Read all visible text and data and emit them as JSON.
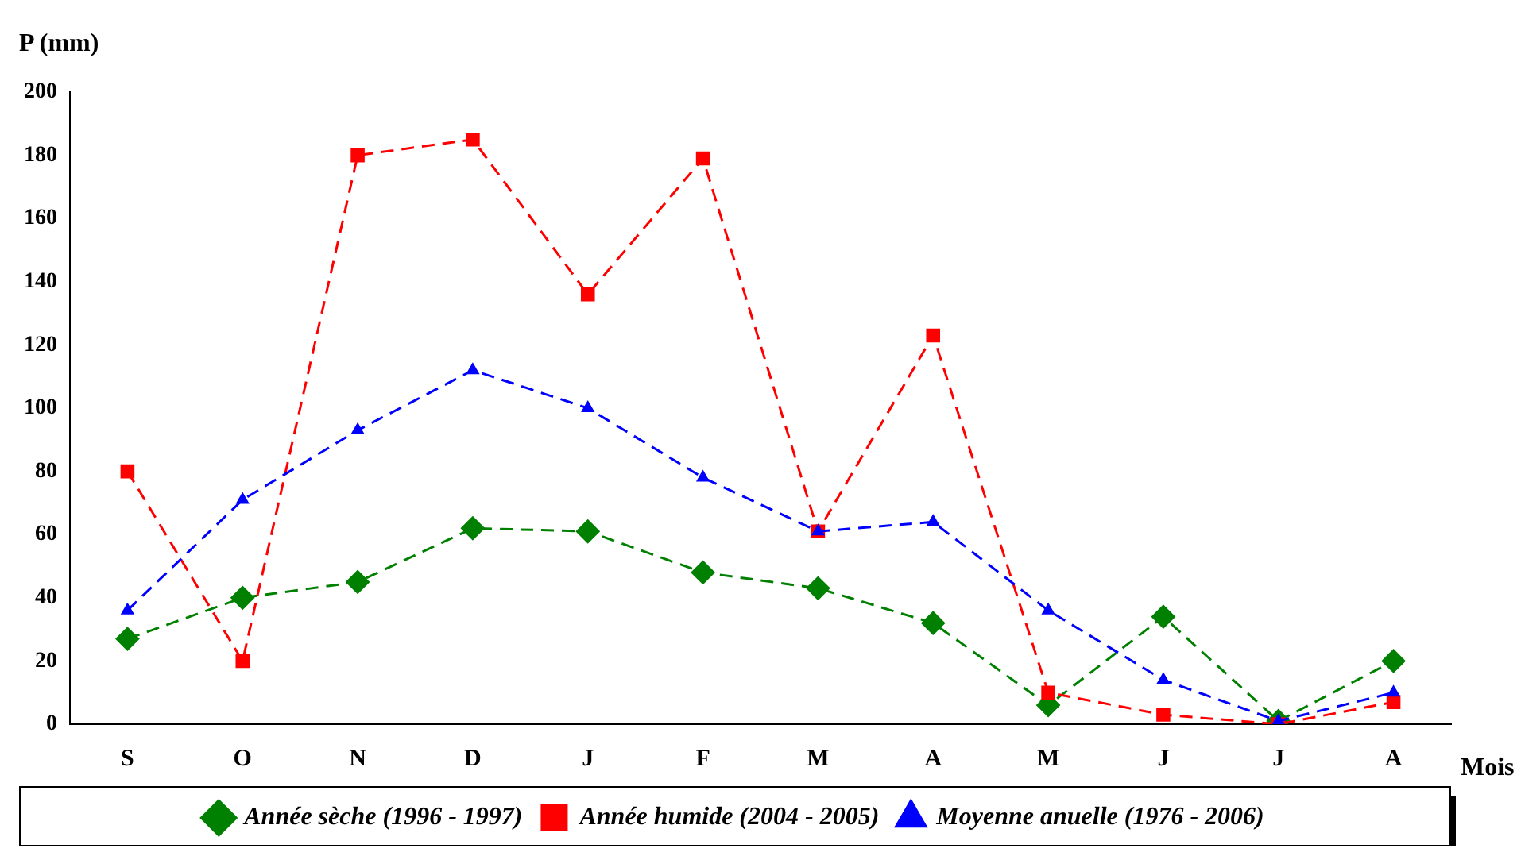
{
  "chart_data": {
    "type": "line",
    "ylabel": "P (mm)",
    "xlabel": "Mois",
    "categories": [
      "S",
      "O",
      "N",
      "D",
      "J",
      "F",
      "M",
      "A",
      "M",
      "J",
      "J",
      "A"
    ],
    "ylim": [
      0,
      200
    ],
    "yticks": [
      0,
      20,
      40,
      60,
      80,
      100,
      120,
      140,
      160,
      180,
      200
    ],
    "grid": false,
    "legend": "bottom",
    "series": [
      {
        "name": "Année sèche (1996 - 1997)",
        "color": "#008000",
        "marker": "diamond",
        "line_style": "dashed",
        "values": [
          27,
          40,
          45,
          62,
          61,
          48,
          43,
          32,
          6,
          34,
          1,
          20
        ]
      },
      {
        "name": "Année humide (2004 - 2005)",
        "color": "#ff0000",
        "marker": "square",
        "line_style": "dashed",
        "values": [
          80,
          20,
          180,
          185,
          136,
          179,
          61,
          123,
          10,
          3,
          0,
          7
        ]
      },
      {
        "name": "Moyenne anuelle (1976 - 2006)",
        "color": "#0000ff",
        "marker": "triangle",
        "line_style": "dashed",
        "values": [
          36,
          71,
          93,
          112,
          100,
          78,
          61,
          64,
          36,
          14,
          1,
          10
        ]
      }
    ]
  }
}
